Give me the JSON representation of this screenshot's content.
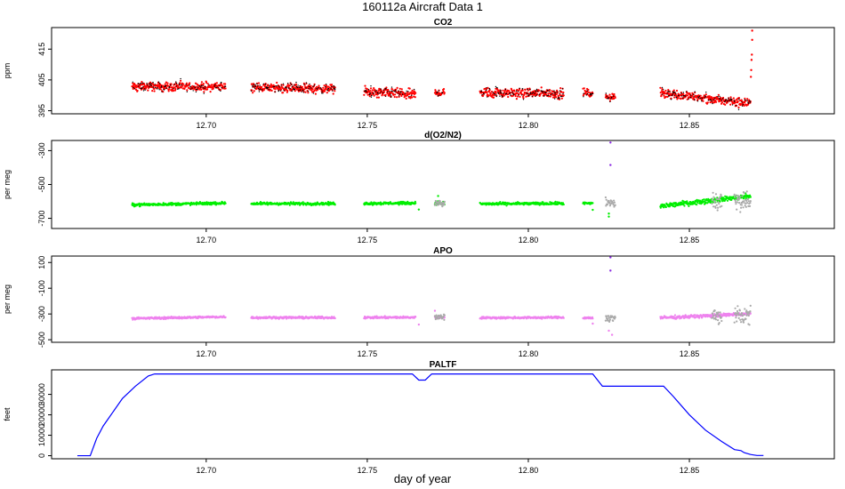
{
  "figure": {
    "title": "160112a    Aircraft Data 1",
    "xlabel": "day of year"
  },
  "chart_data": [
    {
      "type": "scatter",
      "title": "CO2",
      "ylabel": "ppm",
      "xlim": [
        12.652,
        12.895
      ],
      "ylim": [
        394,
        422
      ],
      "xticks": [
        12.7,
        12.75,
        12.8,
        12.85
      ],
      "xtick_labels": [
        "12.70",
        "12.75",
        "12.80",
        "12.85"
      ],
      "yticks": [
        395,
        405,
        415
      ],
      "ytick_labels": [
        "395",
        "405",
        "415"
      ],
      "grid": false,
      "series": [
        {
          "color": "#ff0000",
          "segments": [
            {
              "x0": 12.677,
              "x1": 12.706,
              "y0": 402.8,
              "y1": 402.8,
              "spread": 1.4
            },
            {
              "x0": 12.714,
              "x1": 12.74,
              "y0": 402.6,
              "y1": 402.0,
              "spread": 1.4
            },
            {
              "x0": 12.749,
              "x1": 12.765,
              "y0": 401.0,
              "y1": 400.3,
              "spread": 1.6
            },
            {
              "x0": 12.771,
              "x1": 12.774,
              "y0": 400.8,
              "y1": 400.8,
              "spread": 1.2
            },
            {
              "x0": 12.785,
              "x1": 12.811,
              "y0": 401.0,
              "y1": 400.5,
              "spread": 1.5
            },
            {
              "x0": 12.817,
              "x1": 12.82,
              "y0": 401.0,
              "y1": 400.3,
              "spread": 1.2
            },
            {
              "x0": 12.824,
              "x1": 12.827,
              "y0": 399.5,
              "y1": 399.5,
              "spread": 1.2
            },
            {
              "x0": 12.841,
              "x1": 12.869,
              "y0": 400.8,
              "y1": 397.3,
              "spread": 1.5
            }
          ],
          "extra_points": [
            [
              12.8695,
              421.0
            ],
            [
              12.8695,
              418.0
            ],
            [
              12.8694,
              413.2
            ],
            [
              12.8693,
              411.5
            ],
            [
              12.8692,
              408.2
            ],
            [
              12.8691,
              406.0
            ]
          ]
        }
      ]
    },
    {
      "type": "scatter",
      "title": "d(O2/N2)",
      "ylabel": "per meg",
      "xlim": [
        12.652,
        12.895
      ],
      "ylim": [
        -760,
        -240
      ],
      "xticks": [
        12.7,
        12.75,
        12.8,
        12.85
      ],
      "xtick_labels": [
        "12.70",
        "12.75",
        "12.80",
        "12.85"
      ],
      "yticks": [
        -700,
        -500,
        -300
      ],
      "ytick_labels": [
        "-700",
        "-500",
        "-300"
      ],
      "grid": false,
      "series": [
        {
          "color": "#00ee00",
          "segments": [
            {
              "x0": 12.677,
              "x1": 12.706,
              "y0": -620,
              "y1": -610,
              "spread": 8
            },
            {
              "x0": 12.714,
              "x1": 12.74,
              "y0": -613,
              "y1": -613,
              "spread": 8
            },
            {
              "x0": 12.749,
              "x1": 12.765,
              "y0": -612,
              "y1": -610,
              "spread": 8
            },
            {
              "x0": 12.771,
              "x1": 12.774,
              "y0": -608,
              "y1": -612,
              "spread": 10
            },
            {
              "x0": 12.785,
              "x1": 12.811,
              "y0": -615,
              "y1": -612,
              "spread": 8
            },
            {
              "x0": 12.817,
              "x1": 12.82,
              "y0": -612,
              "y1": -612,
              "spread": 8
            },
            {
              "x0": 12.841,
              "x1": 12.869,
              "y0": -628,
              "y1": -568,
              "spread": 14
            }
          ],
          "extra_points": [
            [
              12.766,
              -648
            ],
            [
              12.772,
              -568
            ],
            [
              12.82,
              -650
            ],
            [
              12.825,
              -672
            ],
            [
              12.825,
              -690
            ]
          ]
        },
        {
          "color": "#aaaaaa",
          "segments": [
            {
              "x0": 12.771,
              "x1": 12.774,
              "y0": -610,
              "y1": -610,
              "spread": 22
            },
            {
              "x0": 12.824,
              "x1": 12.827,
              "y0": -612,
              "y1": -612,
              "spread": 30
            },
            {
              "x0": 12.857,
              "x1": 12.86,
              "y0": -600,
              "y1": -600,
              "spread": 60
            },
            {
              "x0": 12.864,
              "x1": 12.869,
              "y0": -595,
              "y1": -595,
              "spread": 55
            }
          ],
          "extra_points": []
        }
      ],
      "outliers": [
        [
          12.8255,
          -252
        ],
        [
          12.8255,
          -385
        ]
      ]
    },
    {
      "type": "scatter",
      "title": "APO",
      "ylabel": "per meg",
      "xlim": [
        12.652,
        12.895
      ],
      "ylim": [
        -520,
        150
      ],
      "xticks": [
        12.7,
        12.75,
        12.8,
        12.85
      ],
      "xtick_labels": [
        "12.70",
        "12.75",
        "12.80",
        "12.85"
      ],
      "yticks": [
        -500,
        -300,
        -100,
        100
      ],
      "ytick_labels": [
        "-500",
        "-300",
        "-100",
        "100"
      ],
      "grid": false,
      "series": [
        {
          "color": "#ee82ee",
          "segments": [
            {
              "x0": 12.677,
              "x1": 12.706,
              "y0": -335,
              "y1": -322,
              "spread": 8
            },
            {
              "x0": 12.714,
              "x1": 12.74,
              "y0": -328,
              "y1": -328,
              "spread": 8
            },
            {
              "x0": 12.749,
              "x1": 12.765,
              "y0": -328,
              "y1": -326,
              "spread": 8
            },
            {
              "x0": 12.771,
              "x1": 12.774,
              "y0": -325,
              "y1": -325,
              "spread": 10
            },
            {
              "x0": 12.785,
              "x1": 12.811,
              "y0": -330,
              "y1": -327,
              "spread": 8
            },
            {
              "x0": 12.817,
              "x1": 12.82,
              "y0": -330,
              "y1": -330,
              "spread": 8
            },
            {
              "x0": 12.841,
              "x1": 12.869,
              "y0": -330,
              "y1": -300,
              "spread": 12
            }
          ],
          "extra_points": [
            [
              12.766,
              -382
            ],
            [
              12.771,
              -275
            ],
            [
              12.82,
              -375
            ],
            [
              12.825,
              -430
            ],
            [
              12.826,
              -462
            ]
          ]
        },
        {
          "color": "#aaaaaa",
          "segments": [
            {
              "x0": 12.771,
              "x1": 12.774,
              "y0": -325,
              "y1": -325,
              "spread": 22
            },
            {
              "x0": 12.824,
              "x1": 12.827,
              "y0": -330,
              "y1": -330,
              "spread": 28
            },
            {
              "x0": 12.857,
              "x1": 12.86,
              "y0": -320,
              "y1": -320,
              "spread": 70
            },
            {
              "x0": 12.864,
              "x1": 12.869,
              "y0": -315,
              "y1": -315,
              "spread": 60
            }
          ],
          "extra_points": []
        }
      ],
      "outliers": [
        [
          12.8255,
          140
        ],
        [
          12.8255,
          37
        ]
      ]
    },
    {
      "type": "line",
      "title": "PALTF",
      "ylabel": "feet",
      "xlim": [
        12.652,
        12.895
      ],
      "ylim": [
        -1500,
        42000
      ],
      "xticks": [
        12.7,
        12.75,
        12.8,
        12.85
      ],
      "xtick_labels": [
        "12.70",
        "12.75",
        "12.80",
        "12.85"
      ],
      "yticks": [
        0,
        10000,
        20000,
        30000
      ],
      "ytick_labels": [
        "0",
        "10000",
        "20000",
        "30000"
      ],
      "grid": false,
      "series": [
        {
          "color": "#0000ff",
          "x": [
            12.66,
            12.664,
            12.666,
            12.668,
            12.67,
            12.674,
            12.678,
            12.682,
            12.684,
            12.764,
            12.766,
            12.768,
            12.77,
            12.82,
            12.823,
            12.842,
            12.845,
            12.85,
            12.855,
            12.86,
            12.864,
            12.866,
            12.867,
            12.869,
            12.871,
            12.873
          ],
          "values": [
            0,
            0,
            8500,
            14500,
            19000,
            28000,
            34000,
            39000,
            40000,
            40000,
            37000,
            37000,
            40000,
            40000,
            34000,
            34000,
            29000,
            20000,
            12500,
            7000,
            3000,
            2500,
            1500,
            600,
            100,
            100
          ]
        }
      ]
    }
  ]
}
